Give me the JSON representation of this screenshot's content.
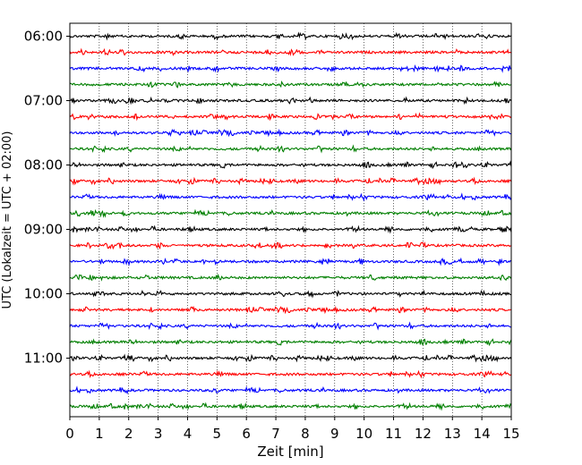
{
  "chart_data": {
    "type": "line",
    "title": "",
    "xlabel": "Zeit  [min]",
    "ylabel": "UTC (Lokalzeit = UTC + 02:00)",
    "xlim": [
      0,
      15
    ],
    "x_ticks": [
      0,
      1,
      2,
      3,
      4,
      5,
      6,
      7,
      8,
      9,
      10,
      11,
      12,
      13,
      14,
      15
    ],
    "y_tick_labels": [
      "06:00",
      "07:00",
      "08:00",
      "09:00",
      "10:00",
      "11:00"
    ],
    "row_interval_minutes": 15,
    "start_time": "06:00",
    "rows": 24,
    "row_colors": [
      "#000000",
      "#ff0000",
      "#0000ff",
      "#007f00"
    ],
    "vertical_grid": "dotted at each minute"
  }
}
